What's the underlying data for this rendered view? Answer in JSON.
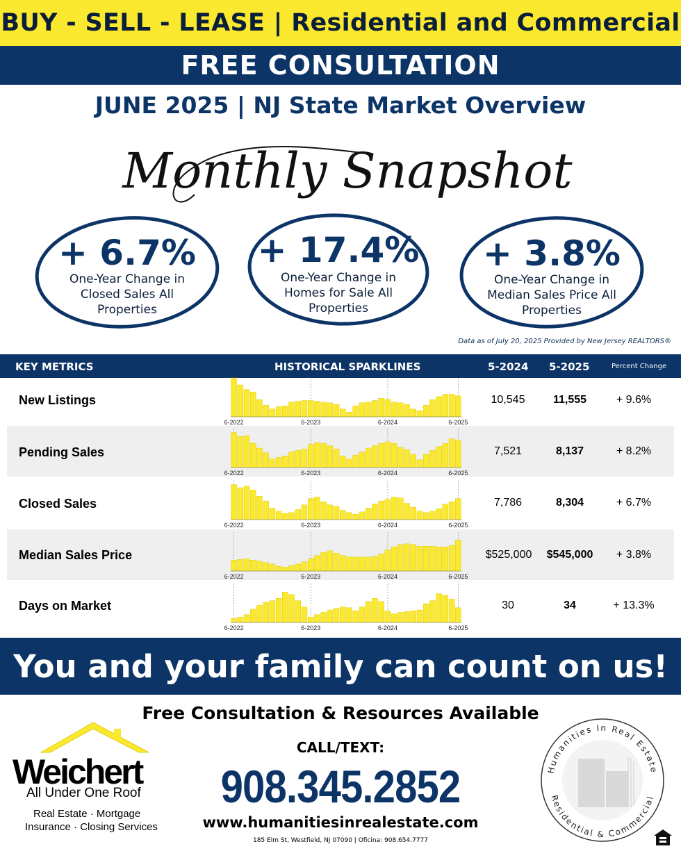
{
  "header": {
    "banner": "BUY - SELL - LEASE | Residential and Commercial",
    "consultation": "FREE CONSULTATION",
    "overview": "JUNE 2025 | NJ State Market Overview",
    "script_title": "Monthly Snapshot"
  },
  "stats": [
    {
      "value": "+ 6.7%",
      "line1": "One-Year Change in",
      "line2": "Closed Sales All",
      "line3": "Properties"
    },
    {
      "value": "+ 17.4%",
      "line1": "One-Year Change in",
      "line2": "Homes for Sale All",
      "line3": "Properties"
    },
    {
      "value": "+ 3.8%",
      "line1": "One-Year Change in",
      "line2": "Median Sales Price All",
      "line3": "Properties"
    }
  ],
  "data_note": "Data as of July 20, 2025 Provided by New Jersey REALTORS®",
  "table": {
    "headers": {
      "metrics": "KEY METRICS",
      "sparklines": "HISTORICAL SPARKLINES",
      "prev": "5-2024",
      "curr": "5-2025",
      "change": "Percent Change"
    },
    "axis_labels": [
      "6-2022",
      "6-2023",
      "6-2024",
      "6-2025"
    ],
    "rows": [
      {
        "label": "New Listings",
        "prev": "10,545",
        "curr": "11,555",
        "change": "+ 9.6%"
      },
      {
        "label": "Pending Sales",
        "prev": "7,521",
        "curr": "8,137",
        "change": "+ 8.2%"
      },
      {
        "label": "Closed Sales",
        "prev": "7,786",
        "curr": "8,304",
        "change": "+ 6.7%"
      },
      {
        "label": "Median Sales Price",
        "prev": "$525,000",
        "curr": "$545,000",
        "change": "+ 3.8%"
      },
      {
        "label": "Days on Market",
        "prev": "30",
        "curr": "34",
        "change": "+ 13.3%"
      }
    ]
  },
  "chart_data": {
    "type": "bar",
    "x_labels": [
      "6-2022",
      "6-2023",
      "6-2024",
      "6-2025"
    ],
    "series": [
      {
        "name": "New Listings",
        "values": [
          100,
          82,
          70,
          64,
          44,
          30,
          20,
          26,
          28,
          38,
          40,
          42,
          42,
          40,
          38,
          36,
          32,
          20,
          12,
          28,
          36,
          38,
          42,
          48,
          45,
          38,
          36,
          32,
          20,
          16,
          30,
          44,
          52,
          58,
          58,
          54
        ]
      },
      {
        "name": "Pending Sales",
        "values": [
          90,
          80,
          82,
          62,
          50,
          38,
          22,
          26,
          30,
          40,
          44,
          48,
          60,
          64,
          62,
          56,
          48,
          30,
          22,
          32,
          40,
          50,
          56,
          62,
          66,
          62,
          52,
          46,
          34,
          20,
          34,
          44,
          54,
          62,
          74,
          70
        ]
      },
      {
        "name": "Closed Sales",
        "values": [
          90,
          82,
          86,
          76,
          60,
          48,
          30,
          22,
          16,
          18,
          26,
          38,
          54,
          58,
          46,
          38,
          34,
          24,
          18,
          14,
          20,
          30,
          40,
          48,
          52,
          58,
          56,
          42,
          32,
          22,
          18,
          22,
          28,
          40,
          46,
          54
        ]
      },
      {
        "name": "Median Sales Price",
        "values": [
          28,
          30,
          32,
          28,
          26,
          22,
          18,
          12,
          10,
          14,
          18,
          24,
          32,
          40,
          48,
          52,
          46,
          40,
          36,
          36,
          36,
          36,
          38,
          44,
          54,
          62,
          68,
          70,
          68,
          64,
          64,
          64,
          62,
          62,
          66,
          80
        ]
      },
      {
        "name": "Days on Market",
        "values": [
          10,
          14,
          20,
          34,
          44,
          52,
          56,
          62,
          78,
          72,
          56,
          40,
          14,
          20,
          26,
          32,
          36,
          40,
          38,
          30,
          40,
          54,
          62,
          54,
          30,
          22,
          26,
          28,
          30,
          32,
          48,
          56,
          74,
          70,
          60,
          38
        ]
      }
    ]
  },
  "footer": {
    "tagline": "You and your family can count on us!",
    "resources": "Free Consultation & Resources Available",
    "call_label": "CALL/TEXT:",
    "phone": "908.345.2852",
    "website": "www.humanitiesinrealestate.com",
    "address": "185 Elm St, Westfield, NJ 07090 | Oficina: 908.654.7777"
  },
  "logo": {
    "brand": "Weichert",
    "tagline": "All Under One Roof",
    "services_line1": "Real Estate · Mortgage",
    "services_line2": "Insurance · Closing Services"
  },
  "seal": {
    "top_text": "Humanities In Real Estate",
    "bottom_text": "Residential & Commercial"
  },
  "colors": {
    "navy": "#0c3467",
    "yellow": "#fbe92f",
    "bar": "#fbe92f"
  }
}
